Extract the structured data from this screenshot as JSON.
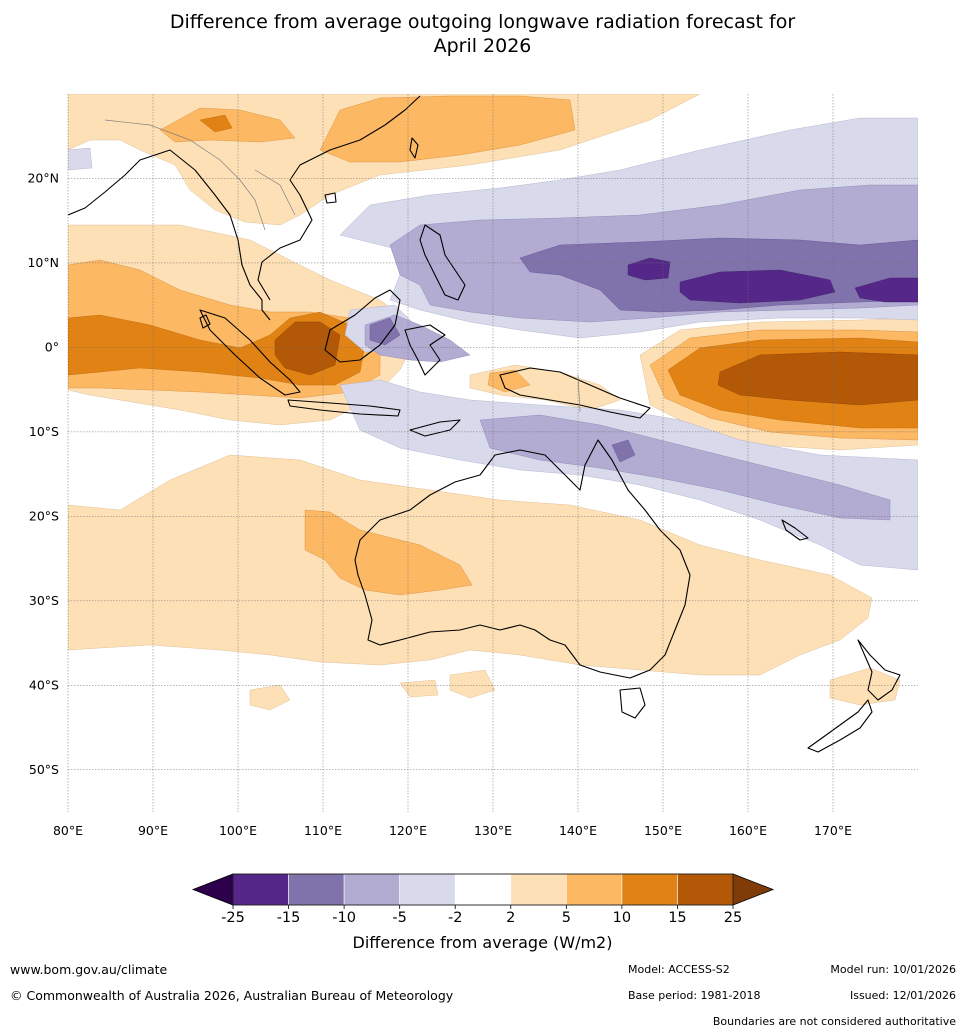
{
  "title_line1": "Difference from average outgoing longwave radiation forecast for",
  "title_line2": "April 2026",
  "map": {
    "lon_range": [
      80,
      180
    ],
    "lat_range": [
      -55,
      30
    ],
    "lon_ticks": [
      {
        "value": 80,
        "label": "80°E"
      },
      {
        "value": 90,
        "label": "90°E"
      },
      {
        "value": 100,
        "label": "100°E"
      },
      {
        "value": 110,
        "label": "110°E"
      },
      {
        "value": 120,
        "label": "120°E"
      },
      {
        "value": 130,
        "label": "130°E"
      },
      {
        "value": 140,
        "label": "140°E"
      },
      {
        "value": 150,
        "label": "150°E"
      },
      {
        "value": 160,
        "label": "160°E"
      },
      {
        "value": 170,
        "label": "170°E"
      }
    ],
    "lat_ticks": [
      {
        "value": 20,
        "label": "20°N"
      },
      {
        "value": 10,
        "label": "10°N"
      },
      {
        "value": 0,
        "label": "0°"
      },
      {
        "value": -10,
        "label": "10°S"
      },
      {
        "value": -20,
        "label": "20°S"
      },
      {
        "value": -30,
        "label": "30°S"
      },
      {
        "value": -40,
        "label": "40°S"
      },
      {
        "value": -50,
        "label": "50°S"
      }
    ]
  },
  "colorbar": {
    "title": "Difference from average (W/m2)",
    "under_color": "#2d004b",
    "over_color": "#7f3b08",
    "colors": [
      "#542788",
      "#8073ac",
      "#b2abd2",
      "#d8daeb",
      "#ffffff",
      "#fee0b6",
      "#fdb863",
      "#e08214",
      "#b35806"
    ],
    "labels": [
      "-25",
      "-15",
      "-10",
      "-5",
      "-2",
      "2",
      "5",
      "10",
      "15",
      "25"
    ]
  },
  "footer": {
    "website": "www.bom.gov.au/climate",
    "copyright": "© Commonwealth of Australia 2026, Australian Bureau of Meteorology",
    "model": "Model: ACCESS-S2",
    "base_period": "Base period: 1981-2018",
    "model_run": "Model run: 10/01/2026",
    "issued": "Issued: 12/01/2026",
    "disclaimer": "Boundaries are not considered authoritative"
  }
}
